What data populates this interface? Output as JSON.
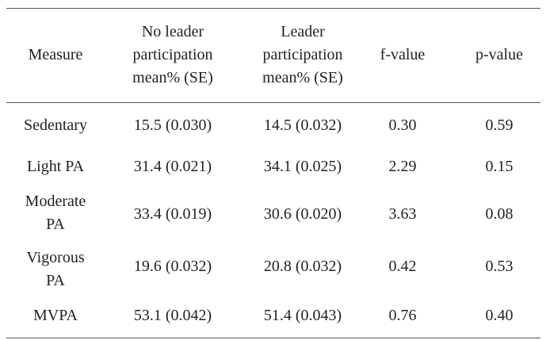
{
  "table": {
    "headers": [
      {
        "lines": [
          "Measure"
        ]
      },
      {
        "lines": [
          "No leader",
          "participation",
          "mean% (SE)"
        ]
      },
      {
        "lines": [
          "Leader",
          "participation",
          "mean% (SE)"
        ]
      },
      {
        "lines": [
          "f-value"
        ]
      },
      {
        "lines": [
          "p-value"
        ]
      }
    ],
    "rows": [
      {
        "measure": [
          "Sedentary"
        ],
        "no_leader": "15.5 (0.030)",
        "leader": "14.5 (0.032)",
        "f_value": "0.30",
        "p_value": "0.59"
      },
      {
        "measure": [
          "Light PA"
        ],
        "no_leader": "31.4 (0.021)",
        "leader": "34.1 (0.025)",
        "f_value": "2.29",
        "p_value": "0.15"
      },
      {
        "measure": [
          "Moderate",
          "PA"
        ],
        "no_leader": "33.4 (0.019)",
        "leader": "30.6 (0.020)",
        "f_value": "3.63",
        "p_value": "0.08"
      },
      {
        "measure": [
          "Vigorous",
          "PA"
        ],
        "no_leader": "19.6 (0.032)",
        "leader": "20.8 (0.032)",
        "f_value": "0.42",
        "p_value": "0.53"
      },
      {
        "measure": [
          "MVPA"
        ],
        "no_leader": "53.1 (0.042)",
        "leader": "51.4 (0.043)",
        "f_value": "0.76",
        "p_value": "0.40"
      }
    ]
  }
}
